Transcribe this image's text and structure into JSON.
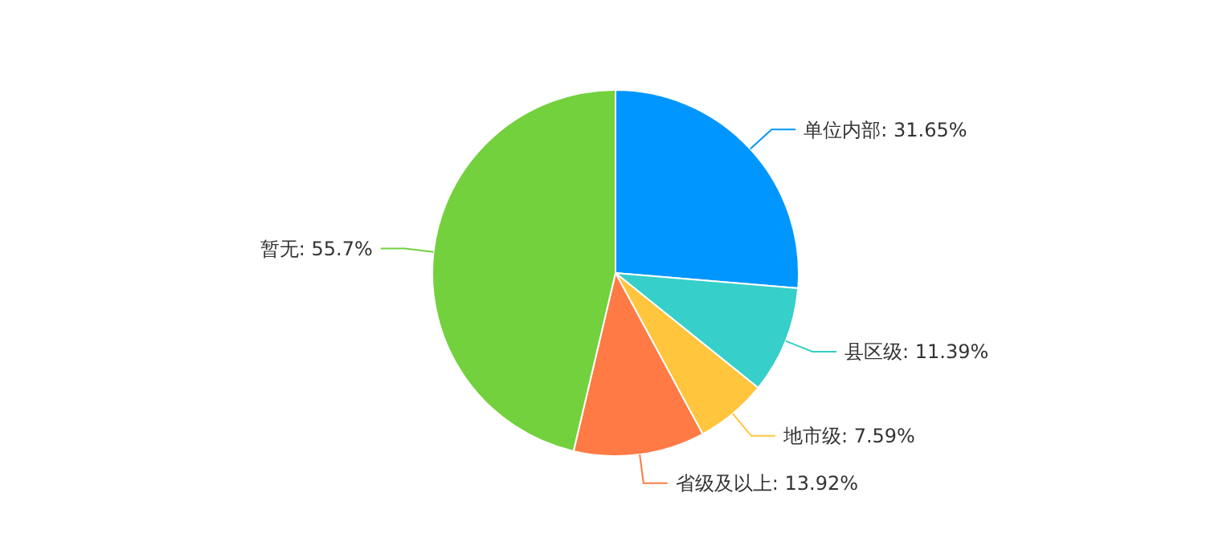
{
  "chart_data": {
    "type": "pie",
    "categories": [
      "单位内部",
      "县区级",
      "地市级",
      "省级及以上",
      "暂无"
    ],
    "values": [
      31.65,
      11.39,
      7.59,
      13.92,
      55.7
    ],
    "value_labels": [
      "31.65%",
      "11.39%",
      "7.59%",
      "13.92%",
      "55.7%"
    ],
    "colors": [
      "#0096ff",
      "#36cfc9",
      "#ffc53d",
      "#ff7a45",
      "#73d13d"
    ]
  }
}
